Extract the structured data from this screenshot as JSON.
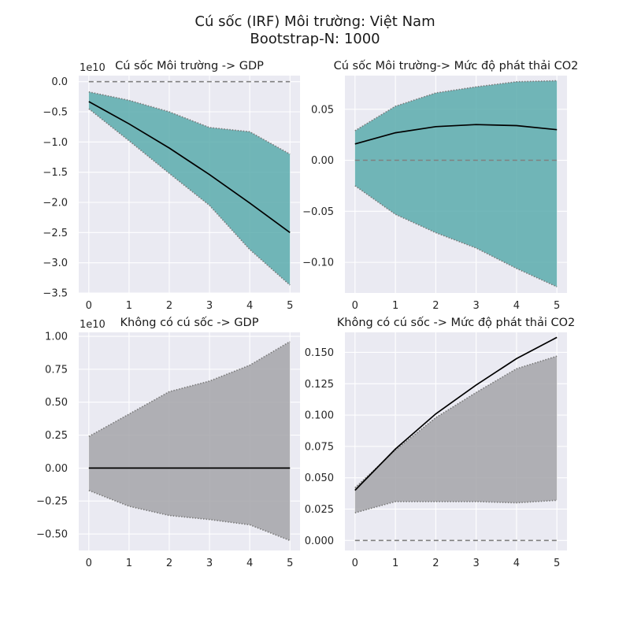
{
  "figure": {
    "title_line1": "Cú sốc (IRF) Môi trường: Việt Nam",
    "title_line2": "Bootstrap-N: 1000"
  },
  "colors": {
    "background": "#eaeaf2",
    "grid": "#ffffff",
    "band_shock": "#5aabad",
    "band_noshock": "#a5a4a9",
    "irf_line": "#000000",
    "zero_line": "#808080"
  },
  "chart_data": [
    {
      "type": "line",
      "title": "Cú sốc Môi trường -> GDP",
      "scale_label": "1e10",
      "x": [
        0,
        1,
        2,
        3,
        4,
        5
      ],
      "xticks": [
        "0",
        "1",
        "2",
        "3",
        "4",
        "5"
      ],
      "ylim": [
        -3.5,
        0.1
      ],
      "yticks": [
        0.0,
        -0.5,
        -1.0,
        -1.5,
        -2.0,
        -2.5,
        -3.0,
        -3.5
      ],
      "ytick_labels": [
        "0.0",
        "−0.5",
        "−1.0",
        "−1.5",
        "−2.0",
        "−2.5",
        "−3.0",
        "−3.5"
      ],
      "series": [
        {
          "role": "irf",
          "values": [
            -0.33,
            -0.7,
            -1.1,
            -1.54,
            -2.01,
            -2.5
          ]
        },
        {
          "role": "upper",
          "values": [
            -0.17,
            -0.31,
            -0.5,
            -0.76,
            -0.83,
            -1.2
          ]
        },
        {
          "role": "lower",
          "values": [
            -0.45,
            -0.98,
            -1.52,
            -2.05,
            -2.78,
            -3.37
          ]
        },
        {
          "role": "zero",
          "values": [
            0,
            0,
            0,
            0,
            0,
            0
          ]
        }
      ],
      "band_color": "#5aabad",
      "grid": true
    },
    {
      "type": "line",
      "title": "Cú sốc Môi trường-> Mức độ phát thải CO2",
      "scale_label": "",
      "x": [
        0,
        1,
        2,
        3,
        4,
        5
      ],
      "xticks": [
        "0",
        "1",
        "2",
        "3",
        "4",
        "5"
      ],
      "ylim": [
        -0.13,
        0.083
      ],
      "yticks": [
        0.05,
        0.0,
        -0.05,
        -0.1
      ],
      "ytick_labels": [
        "0.05",
        "0.00",
        "−0.05",
        "−0.10"
      ],
      "series": [
        {
          "role": "irf",
          "values": [
            0.016,
            0.027,
            0.033,
            0.035,
            0.034,
            0.03
          ]
        },
        {
          "role": "upper",
          "values": [
            0.029,
            0.053,
            0.066,
            0.072,
            0.077,
            0.078
          ]
        },
        {
          "role": "lower",
          "values": [
            -0.025,
            -0.053,
            -0.071,
            -0.086,
            -0.106,
            -0.124
          ]
        },
        {
          "role": "zero",
          "values": [
            0,
            0,
            0,
            0,
            0,
            0
          ]
        }
      ],
      "band_color": "#5aabad",
      "grid": true
    },
    {
      "type": "line",
      "title": "Không có cú sốc -> GDP",
      "scale_label": "1e10",
      "x": [
        0,
        1,
        2,
        3,
        4,
        5
      ],
      "xticks": [
        "0",
        "1",
        "2",
        "3",
        "4",
        "5"
      ],
      "ylim": [
        -0.625,
        1.03
      ],
      "yticks": [
        1.0,
        0.75,
        0.5,
        0.25,
        0.0,
        -0.25,
        -0.5
      ],
      "ytick_labels": [
        "1.00",
        "0.75",
        "0.50",
        "0.25",
        "0.00",
        "−0.25",
        "−0.50"
      ],
      "series": [
        {
          "role": "irf",
          "values": [
            0,
            0,
            0,
            0,
            0,
            0
          ]
        },
        {
          "role": "upper",
          "values": [
            0.24,
            0.41,
            0.58,
            0.66,
            0.78,
            0.96
          ]
        },
        {
          "role": "lower",
          "values": [
            -0.17,
            -0.29,
            -0.36,
            -0.39,
            -0.43,
            -0.55
          ]
        }
      ],
      "band_color": "#a5a4a9",
      "grid": true
    },
    {
      "type": "line",
      "title": "Không có cú sốc -> Mức độ phát thải CO2",
      "scale_label": "",
      "x": [
        0,
        1,
        2,
        3,
        4,
        5
      ],
      "xticks": [
        "0",
        "1",
        "2",
        "3",
        "4",
        "5"
      ],
      "ylim": [
        -0.008,
        0.166
      ],
      "yticks": [
        0.15,
        0.125,
        0.1,
        0.075,
        0.05,
        0.025,
        0.0
      ],
      "ytick_labels": [
        "0.150",
        "0.125",
        "0.100",
        "0.075",
        "0.050",
        "0.025",
        "0.000"
      ],
      "series": [
        {
          "role": "irf",
          "values": [
            0.04,
            0.073,
            0.101,
            0.124,
            0.145,
            0.162
          ]
        },
        {
          "role": "upper",
          "values": [
            0.042,
            0.072,
            0.098,
            0.118,
            0.137,
            0.147
          ]
        },
        {
          "role": "lower",
          "values": [
            0.022,
            0.031,
            0.031,
            0.031,
            0.03,
            0.032
          ]
        },
        {
          "role": "zero",
          "values": [
            0,
            0,
            0,
            0,
            0,
            0
          ]
        }
      ],
      "band_color": "#a5a4a9",
      "grid": true
    }
  ]
}
